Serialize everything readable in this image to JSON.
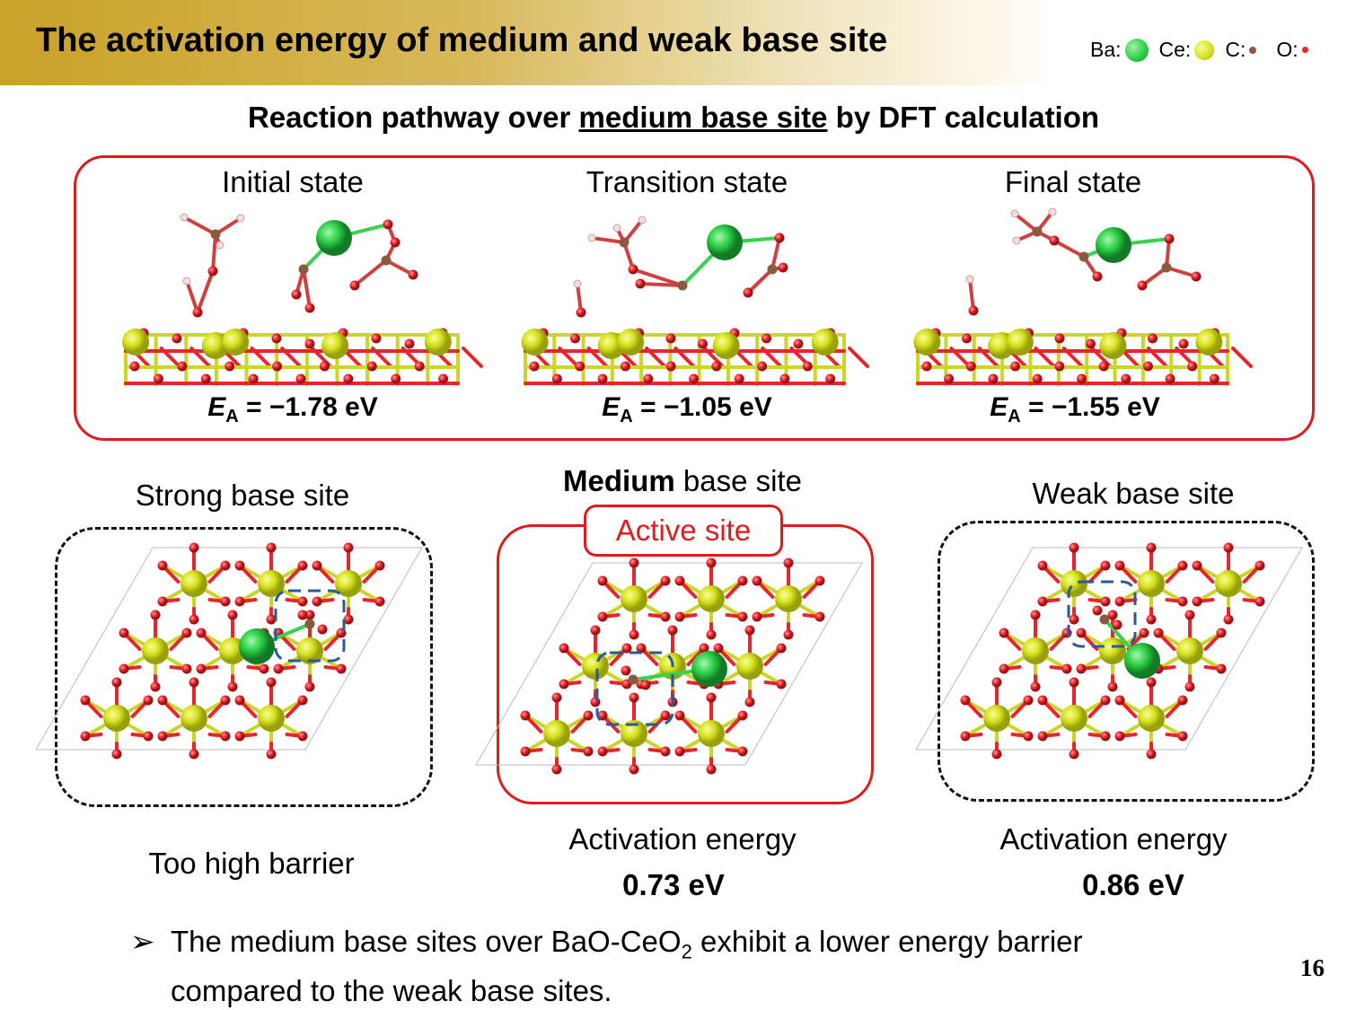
{
  "header": {
    "title": "The activation energy of medium and weak base site"
  },
  "legend": [
    {
      "label": "Ba:",
      "color": "#2bd146",
      "size": 26
    },
    {
      "label": "Ce:",
      "color": "#d8e31e",
      "size": 22
    },
    {
      "label": "C:",
      "color": "#8a5a3c",
      "size": 8
    },
    {
      "label": "O:",
      "color": "#e8252a",
      "size": 7
    }
  ],
  "subtitle": {
    "prefix": "Reaction pathway over ",
    "underlined": "medium base site",
    "suffix": " by DFT calculation"
  },
  "pathway": {
    "states": [
      {
        "label": "Initial state",
        "ea_symbol": "E",
        "ea_sub": "A",
        "ea_value": " = −1.78 eV"
      },
      {
        "label": "Transition state",
        "ea_symbol": "E",
        "ea_sub": "A",
        "ea_value": " = −1.05 eV"
      },
      {
        "label": "Final state",
        "ea_symbol": "E",
        "ea_sub": "A",
        "ea_value": " = −1.55 eV"
      }
    ]
  },
  "sites": {
    "strong": {
      "label": "Strong base site",
      "footer": "Too high barrier"
    },
    "medium": {
      "label_bold": "Medium",
      "label_rest": " base site",
      "tag": "Active site",
      "footer": "Activation energy",
      "value": "0.73 eV"
    },
    "weak": {
      "label": "Weak base site",
      "footer": "Activation energy",
      "value": "0.86 eV"
    }
  },
  "bullet": {
    "marker": "➢",
    "text_part1": "The medium base sites over BaO-CeO",
    "subscript": "2",
    "text_part2": " exhibit a lower energy barrier",
    "line2": "compared to the weak base sites."
  },
  "page_number": "16",
  "colors": {
    "ba": "#2bd146",
    "ce": "#d8e31e",
    "c": "#8a5a3c",
    "o": "#e8252a",
    "red_frame": "#e01b1b",
    "dashed_blue": "#2a5a9a"
  }
}
